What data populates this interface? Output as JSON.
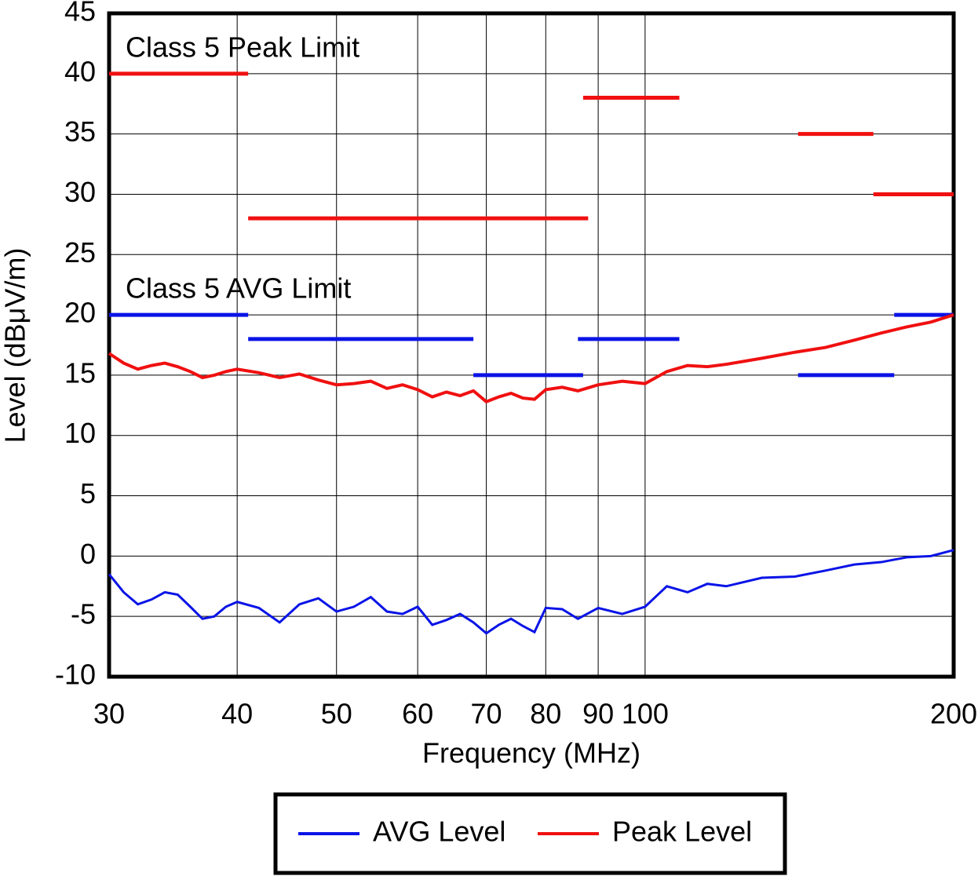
{
  "chart_data": {
    "type": "line",
    "xlabel": "Frequency (MHz)",
    "ylabel": "Level (dBμV/m)",
    "xscale": "log",
    "xlim": [
      30,
      200
    ],
    "xticks": [
      30,
      40,
      50,
      60,
      70,
      80,
      90,
      100,
      200
    ],
    "ylim": [
      -10,
      45
    ],
    "yticks": [
      -10,
      -5,
      0,
      5,
      10,
      15,
      20,
      25,
      30,
      35,
      40,
      45
    ],
    "grid": true,
    "legend": "bottom",
    "x": [
      30,
      31,
      32,
      33,
      34,
      35,
      36,
      37,
      38,
      39,
      40,
      42,
      44,
      46,
      48,
      50,
      52,
      54,
      56,
      58,
      60,
      62,
      64,
      66,
      68,
      70,
      72,
      74,
      76,
      78,
      80,
      83,
      86,
      90,
      95,
      100,
      105,
      110,
      115,
      120,
      130,
      140,
      150,
      160,
      170,
      180,
      190,
      200
    ],
    "series": [
      {
        "name": "AVG Level",
        "color": "#0a14e6",
        "values": [
          -1.5,
          -3,
          -4,
          -3.6,
          -3,
          -3.2,
          -4.2,
          -5.2,
          -5,
          -4.2,
          -3.8,
          -4.3,
          -5.5,
          -4,
          -3.5,
          -4.6,
          -4.2,
          -3.4,
          -4.6,
          -4.8,
          -4.2,
          -5.7,
          -5.3,
          -4.8,
          -5.5,
          -6.4,
          -5.7,
          -5.2,
          -5.8,
          -6.3,
          -4.3,
          -4.4,
          -5.2,
          -4.3,
          -4.8,
          -4.2,
          -2.5,
          -3,
          -2.3,
          -2.5,
          -1.8,
          -1.7,
          -1.2,
          -0.7,
          -0.5,
          -0.1,
          0,
          0.5
        ]
      },
      {
        "name": "Peak Level",
        "color": "#f01010",
        "values": [
          16.8,
          16,
          15.5,
          15.8,
          16,
          15.7,
          15.3,
          14.8,
          15,
          15.3,
          15.5,
          15.2,
          14.8,
          15.1,
          14.6,
          14.2,
          14.3,
          14.5,
          13.9,
          14.2,
          13.8,
          13.2,
          13.6,
          13.3,
          13.7,
          12.8,
          13.2,
          13.5,
          13.1,
          13,
          13.8,
          14,
          13.7,
          14.2,
          14.5,
          14.3,
          15.3,
          15.8,
          15.7,
          15.9,
          16.4,
          16.9,
          17.3,
          17.9,
          18.5,
          19,
          19.4,
          20
        ]
      }
    ],
    "limits": [
      {
        "label": "Class 5 Peak Limit",
        "color": "#f01010",
        "segments": [
          {
            "x": [
              30,
              41
            ],
            "y": 40
          },
          {
            "x": [
              41,
              88
            ],
            "y": 28
          },
          {
            "x": [
              87,
              108
            ],
            "y": 38
          },
          {
            "x": [
              141,
              167
            ],
            "y": 35
          },
          {
            "x": [
              167,
              200
            ],
            "y": 30
          }
        ]
      },
      {
        "label": "Class 5 AVG Limit",
        "color": "#0a14e6",
        "segments": [
          {
            "x": [
              30,
              41
            ],
            "y": 20
          },
          {
            "x": [
              41,
              68
            ],
            "y": 18
          },
          {
            "x": [
              68,
              87
            ],
            "y": 15
          },
          {
            "x": [
              86,
              108
            ],
            "y": 18
          },
          {
            "x": [
              141,
              175
            ],
            "y": 15
          },
          {
            "x": [
              175,
              200
            ],
            "y": 20
          }
        ]
      }
    ]
  }
}
